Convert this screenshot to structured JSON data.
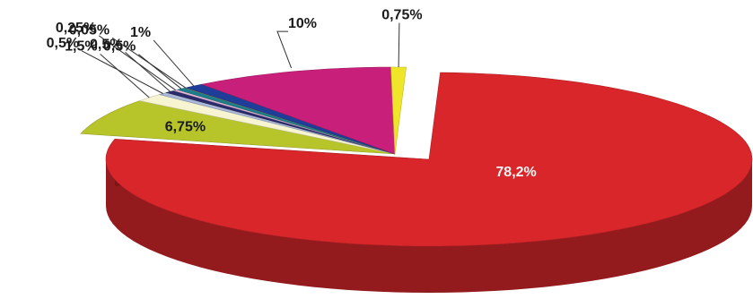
{
  "chart_data": {
    "type": "pie",
    "title": "",
    "exploded_slice": "78,2%",
    "slices": [
      {
        "label": "78,2%",
        "value": 78.2,
        "color": "#d8262a"
      },
      {
        "label": "6,75%",
        "value": 6.75,
        "color": "#b7c42a"
      },
      {
        "label": "1,5%",
        "value": 1.5,
        "color": "#f7f4d2"
      },
      {
        "label": "0,5%",
        "value": 0.5,
        "color": "#aab7d6"
      },
      {
        "label": "0,5%",
        "value": 0.5,
        "color": "#2b2b6b"
      },
      {
        "label": "0,25%",
        "value": 0.25,
        "color": "#e8b7d8"
      },
      {
        "label": "0,5%",
        "value": 0.5,
        "color": "#1b7f89"
      },
      {
        "label": "0,05%",
        "value": 0.05,
        "color": "#f0a040"
      },
      {
        "label": "1%",
        "value": 1.0,
        "color": "#1f3e9a"
      },
      {
        "label": "10%",
        "value": 10.0,
        "color": "#c8207a"
      },
      {
        "label": "0,75%",
        "value": 0.75,
        "color": "#efe62a"
      }
    ]
  }
}
